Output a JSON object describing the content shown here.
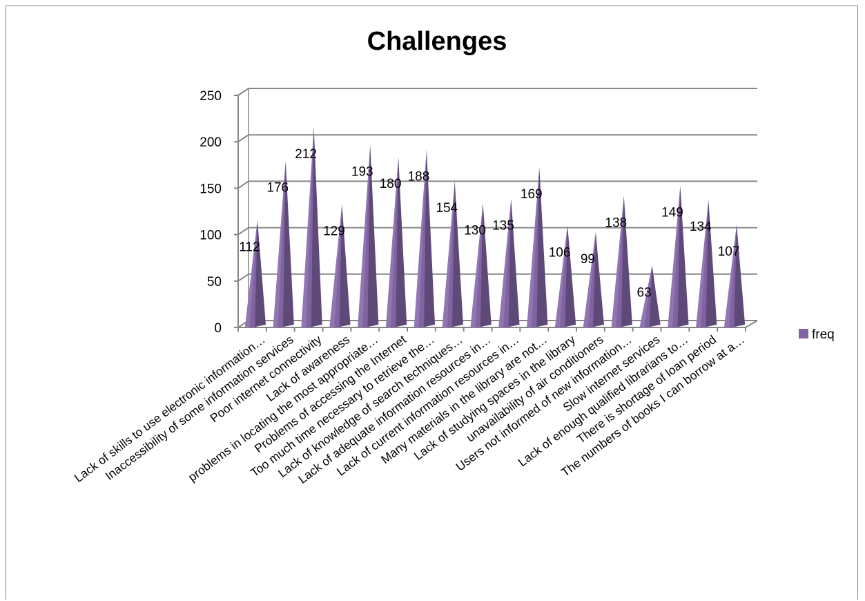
{
  "chart_data": {
    "type": "bar",
    "title": "Challenges",
    "categories": [
      "Lack of skills to use electronic information…",
      "Inaccessibility of  some information services",
      "Poor internet connectivity",
      "Lack of awareness",
      "problems in locating the most appropriate…",
      "Problems of accessing the Internet",
      "Too much time necessary to retrieve the…",
      "Lack of knowledge of search techniques…",
      "Lack of adequate information resources in…",
      "Lack of current information resources in…",
      "Many materials in the library are not…",
      "Lack of studying spaces in the library",
      "unavailability of air conditioners",
      "Users not informed of new information…",
      "Slow internet services",
      "Lack of enough qualified librarians to…",
      "There is shortage of loan period",
      "The numbers of books I can borrow at a…"
    ],
    "series": [
      {
        "name": "freq",
        "values": [
          112,
          176,
          212,
          129,
          193,
          180,
          188,
          154,
          130,
          135,
          169,
          106,
          99,
          138,
          63,
          149,
          134,
          107
        ]
      }
    ],
    "yticks": [
      "0",
      "50",
      "100",
      "150",
      "200",
      "250"
    ],
    "ylim": [
      0,
      250
    ],
    "grid": true,
    "legend_position": "right",
    "colors": {
      "bar_face": "#8064A2",
      "bar_dark": "#5E4979",
      "bar_light": "#9F86BE",
      "grid": "#868686"
    }
  }
}
